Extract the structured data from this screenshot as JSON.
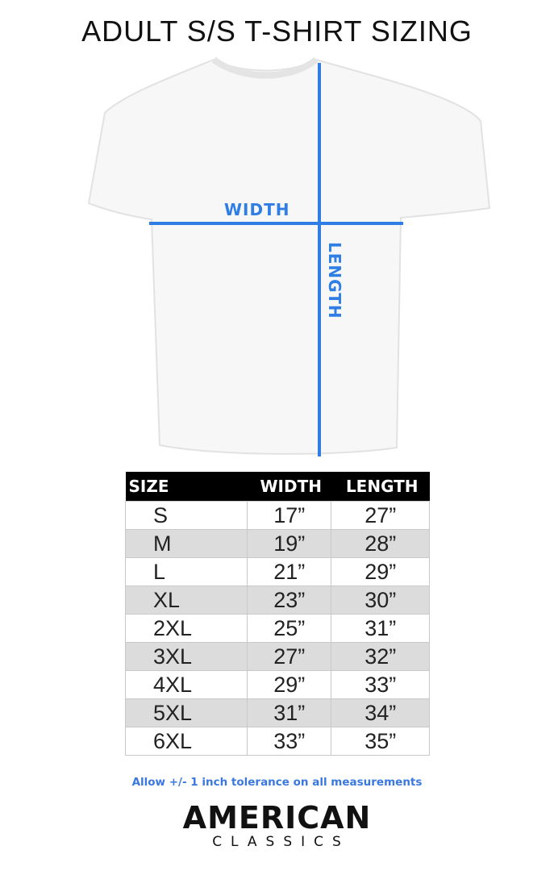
{
  "title": "ADULT S/S T-SHIRT SIZING",
  "diagram": {
    "width_label": "WIDTH",
    "length_label": "LENGTH",
    "line_color": "#2e7ee6"
  },
  "table": {
    "headers": [
      "SIZE",
      "WIDTH",
      "LENGTH"
    ],
    "rows": [
      [
        "S",
        "17”",
        "27”"
      ],
      [
        "M",
        "19”",
        "28”"
      ],
      [
        "L",
        "21”",
        "29”"
      ],
      [
        "XL",
        "23”",
        "30”"
      ],
      [
        "2XL",
        "25”",
        "31”"
      ],
      [
        "3XL",
        "27”",
        "32”"
      ],
      [
        "4XL",
        "29”",
        "33”"
      ],
      [
        "5XL",
        "31”",
        "34”"
      ],
      [
        "6XL",
        "33”",
        "35”"
      ]
    ]
  },
  "note": "Allow +/- 1 inch tolerance on all measurements",
  "logo": {
    "line1": "AMERICAN",
    "line2": "CLASSICS"
  }
}
